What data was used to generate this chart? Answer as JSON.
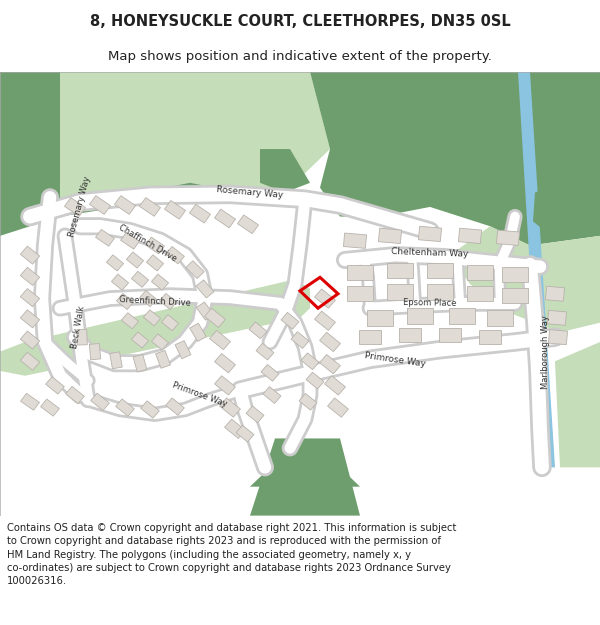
{
  "title_line1": "8, HONEYSUCKLE COURT, CLEETHORPES, DN35 0SL",
  "title_line2": "Map shows position and indicative extent of the property.",
  "copyright_text": "Contains OS data © Crown copyright and database right 2021. This information is subject\nto Crown copyright and database rights 2023 and is reproduced with the permission of\nHM Land Registry. The polygons (including the associated geometry, namely x, y\nco-ordinates) are subject to Crown copyright and database rights 2023 Ordnance Survey\n100026316.",
  "fig_width": 6.0,
  "fig_height": 6.25,
  "dpi": 100,
  "colors": {
    "dark_green": "#6e9e6e",
    "light_green": "#c5ddb8",
    "med_green": "#8ab88a",
    "road_white": "#ffffff",
    "road_outline": "#cccccc",
    "building_fill": "#e0dbd4",
    "building_ec": "#b8b3ac",
    "background": "#f0ebe5",
    "blue_line": "#8ac4e0",
    "text_color": "#222222",
    "red_poly": "#dd0000"
  },
  "title_fontsize": 10.5,
  "subtitle_fontsize": 9.5,
  "copyright_fontsize": 7.2
}
